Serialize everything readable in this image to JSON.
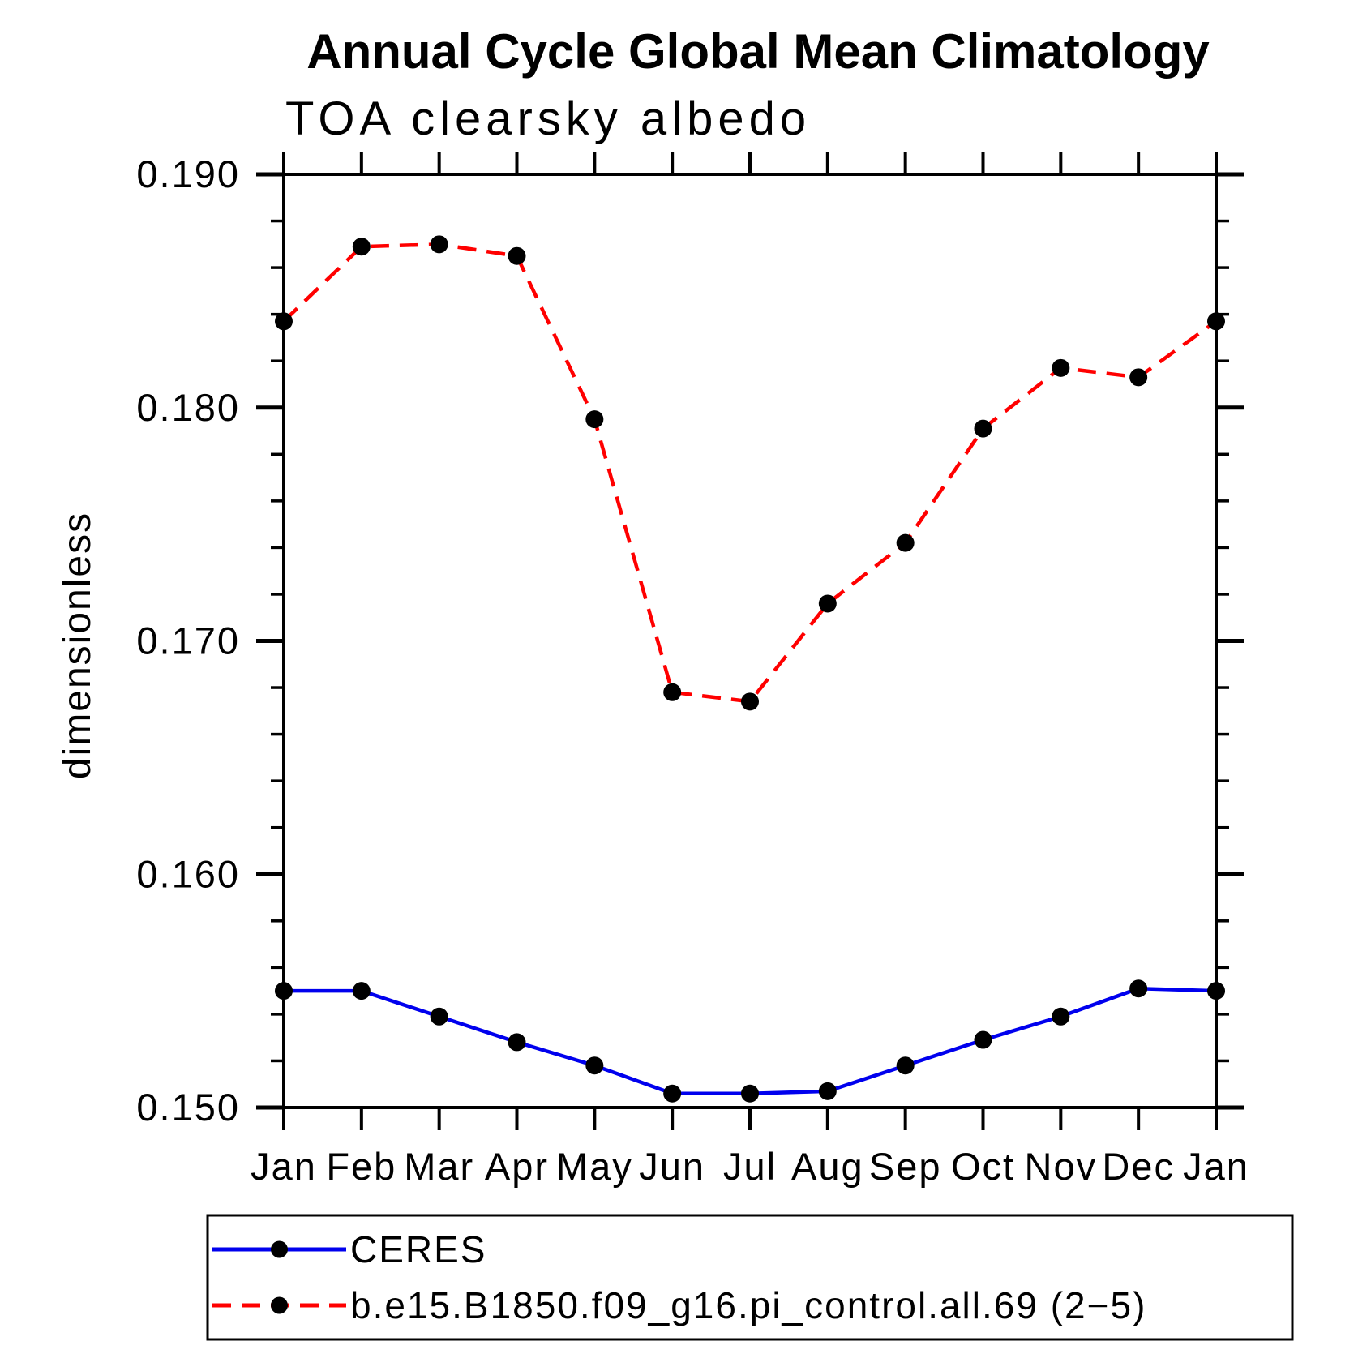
{
  "chart_data": {
    "type": "line",
    "title": "Annual Cycle Global Mean Climatology",
    "subtitle": "TOA clearsky albedo",
    "ylabel": "dimensionless",
    "xlabel": "",
    "categories": [
      "Jan",
      "Feb",
      "Mar",
      "Apr",
      "May",
      "Jun",
      "Jul",
      "Aug",
      "Sep",
      "Oct",
      "Nov",
      "Dec",
      "Jan"
    ],
    "ylim": [
      0.15,
      0.19
    ],
    "ytick_values": [
      0.15,
      0.16,
      0.17,
      0.18,
      0.19
    ],
    "ytick_labels": [
      "0.150",
      "0.160",
      "0.170",
      "0.180",
      "0.190"
    ],
    "yminor_step": 0.002,
    "grid": false,
    "legend_position": "bottom",
    "series": [
      {
        "name": "CERES",
        "color": "#0000ee",
        "style": "solid",
        "marker": "circle",
        "marker_color": "#000000",
        "values": [
          0.155,
          0.155,
          0.1539,
          0.1528,
          0.1518,
          0.1506,
          0.1506,
          0.1507,
          0.1518,
          0.1529,
          0.1539,
          0.1551,
          0.155
        ]
      },
      {
        "name": "b.e15.B1850.f09_g16.pi_control.all.69 (2−5)",
        "color": "#ff0000",
        "style": "dashed",
        "marker": "circle",
        "marker_color": "#000000",
        "values": [
          0.1837,
          0.1869,
          0.187,
          0.1865,
          0.1795,
          0.1678,
          0.1674,
          0.1716,
          0.1742,
          0.1791,
          0.1817,
          0.1813,
          0.1837
        ]
      }
    ]
  },
  "colors": {
    "axis": "#000000",
    "background": "#ffffff",
    "ceres_line": "#0000ee",
    "model_line": "#ff0000",
    "marker": "#000000"
  }
}
